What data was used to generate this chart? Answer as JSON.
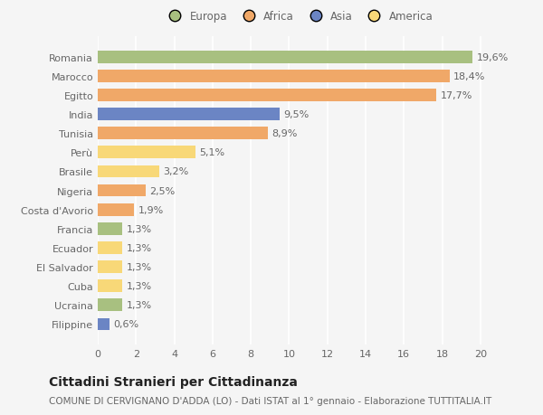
{
  "categories": [
    "Romania",
    "Marocco",
    "Egitto",
    "India",
    "Tunisia",
    "Perù",
    "Brasile",
    "Nigeria",
    "Costa d'Avorio",
    "Francia",
    "Ecuador",
    "El Salvador",
    "Cuba",
    "Ucraina",
    "Filippine"
  ],
  "values": [
    19.6,
    18.4,
    17.7,
    9.5,
    8.9,
    5.1,
    3.2,
    2.5,
    1.9,
    1.3,
    1.3,
    1.3,
    1.3,
    1.3,
    0.6
  ],
  "labels": [
    "19,6%",
    "18,4%",
    "17,7%",
    "9,5%",
    "8,9%",
    "5,1%",
    "3,2%",
    "2,5%",
    "1,9%",
    "1,3%",
    "1,3%",
    "1,3%",
    "1,3%",
    "1,3%",
    "0,6%"
  ],
  "colors": [
    "#a8c080",
    "#f0a868",
    "#f0a868",
    "#6b85c4",
    "#f0a868",
    "#f8d878",
    "#f8d878",
    "#f0a868",
    "#f0a868",
    "#a8c080",
    "#f8d878",
    "#f8d878",
    "#f8d878",
    "#a8c080",
    "#6b85c4"
  ],
  "legend": [
    {
      "label": "Europa",
      "color": "#a8c080"
    },
    {
      "label": "Africa",
      "color": "#f0a868"
    },
    {
      "label": "Asia",
      "color": "#6b85c4"
    },
    {
      "label": "America",
      "color": "#f8d878"
    }
  ],
  "xlim": [
    0,
    21
  ],
  "xticks": [
    0,
    2,
    4,
    6,
    8,
    10,
    12,
    14,
    16,
    18,
    20
  ],
  "title": "Cittadini Stranieri per Cittadinanza",
  "subtitle": "COMUNE DI CERVIGNANO D'ADDA (LO) - Dati ISTAT al 1° gennaio - Elaborazione TUTTITALIA.IT",
  "bg_color": "#f5f5f5",
  "bar_height": 0.65,
  "grid_color": "#ffffff",
  "text_color": "#666666",
  "label_fontsize": 8,
  "tick_fontsize": 8,
  "title_fontsize": 10,
  "subtitle_fontsize": 7.5
}
